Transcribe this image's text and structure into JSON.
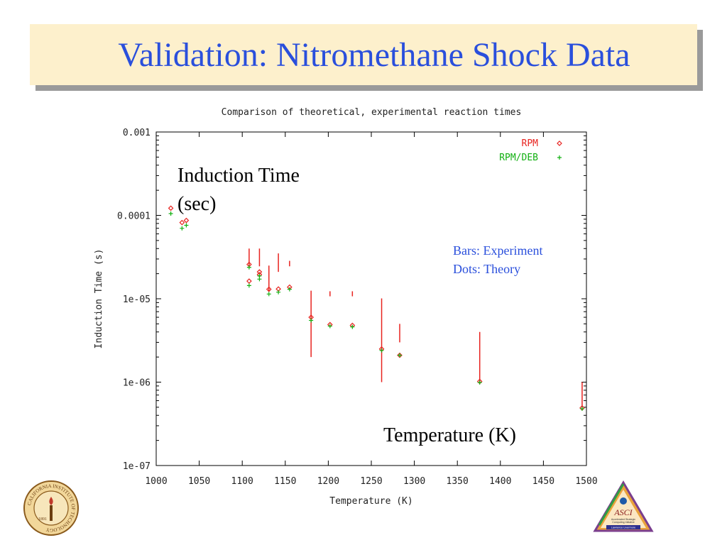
{
  "slide": {
    "title": "Validation: Nitromethane Shock Data",
    "y_annotation_line1": "Induction Time",
    "y_annotation_line2": "(sec)",
    "x_annotation": "Temperature (K)",
    "note_line1": "Bars: Experiment",
    "note_line2": "Dots: Theory"
  },
  "logos": {
    "left": {
      "name": "CALIFORNIA INSTITUTE OF TECHNOLOGY",
      "year": "1891"
    },
    "right": {
      "name": "ASCI",
      "line1": "Accelerated Strategic",
      "line2": "Computing Initiative",
      "line3": "Lawrence Livermore"
    }
  },
  "colors": {
    "title": "#2a4fdc",
    "title_bg": "#fdf0cc",
    "rpm": "#e8231f",
    "rpm_deb": "#12b012",
    "bars": "#e8231f"
  },
  "chart_data": {
    "type": "scatter",
    "title": "Comparison of theoretical, experimental reaction times",
    "xlabel": "Temperature (K)",
    "ylabel": "Induction Time (s)",
    "xlim": [
      1000,
      1500
    ],
    "ylim": [
      1e-07,
      0.001
    ],
    "yscale": "log",
    "x_ticks": [
      1000,
      1050,
      1100,
      1150,
      1200,
      1250,
      1300,
      1350,
      1400,
      1450,
      1500
    ],
    "y_ticks": [
      {
        "value": 1e-07,
        "label": "1e-07"
      },
      {
        "value": 1e-06,
        "label": "1e-06"
      },
      {
        "value": 1e-05,
        "label": "1e-05"
      },
      {
        "value": 0.0001,
        "label": "0.0001"
      },
      {
        "value": 0.001,
        "label": "0.001"
      }
    ],
    "legend": {
      "position": "top-right"
    },
    "series": [
      {
        "name": "RPM",
        "marker": "diamond",
        "color": "#e8231f",
        "x": [
          1017,
          1030,
          1035,
          1108,
          1108,
          1120,
          1120,
          1131,
          1142,
          1155,
          1180,
          1202,
          1228,
          1262,
          1283,
          1376,
          1495
        ],
        "y": [
          0.000122,
          8.2e-05,
          8.7e-05,
          2.58e-05,
          1.63e-05,
          2.1e-05,
          1.95e-05,
          1.3e-05,
          1.31e-05,
          1.38e-05,
          6e-06,
          4.9e-06,
          4.8e-06,
          2.5e-06,
          2.1e-06,
          1.02e-06,
          4.9e-07
        ]
      },
      {
        "name": "RPM/DEB",
        "marker": "plus",
        "color": "#12b012",
        "x": [
          1017,
          1030,
          1035,
          1108,
          1108,
          1120,
          1120,
          1131,
          1142,
          1155,
          1180,
          1202,
          1228,
          1262,
          1283,
          1376,
          1495
        ],
        "y": [
          0.000105,
          7e-05,
          7.6e-05,
          2.38e-05,
          1.44e-05,
          1.88e-05,
          1.72e-05,
          1.14e-05,
          1.2e-05,
          1.3e-05,
          5.5e-06,
          4.7e-06,
          4.6e-06,
          2.4e-06,
          2.1e-06,
          9.9e-07,
          4.8e-07
        ]
      }
    ],
    "experiment_bars": [
      {
        "x": 1108,
        "low": 2.45e-05,
        "high": 4e-05
      },
      {
        "x": 1120,
        "low": 2.45e-05,
        "high": 4e-05
      },
      {
        "x": 1131,
        "low": 1.22e-05,
        "high": 2.5e-05
      },
      {
        "x": 1142,
        "low": 2.1e-05,
        "high": 3.5e-05
      },
      {
        "x": 1155,
        "low": 2.45e-05,
        "high": 2.85e-05
      },
      {
        "x": 1180,
        "low": 2e-06,
        "high": 1.25e-05
      },
      {
        "x": 1202,
        "low": 1.07e-05,
        "high": 1.23e-05
      },
      {
        "x": 1228,
        "low": 1.07e-05,
        "high": 1.23e-05
      },
      {
        "x": 1262,
        "low": 1e-06,
        "high": 1.01e-05
      },
      {
        "x": 1283,
        "low": 3e-06,
        "high": 5e-06
      },
      {
        "x": 1376,
        "low": 1e-06,
        "high": 4e-06
      },
      {
        "x": 1495,
        "low": 5e-07,
        "high": 1e-06
      }
    ]
  }
}
